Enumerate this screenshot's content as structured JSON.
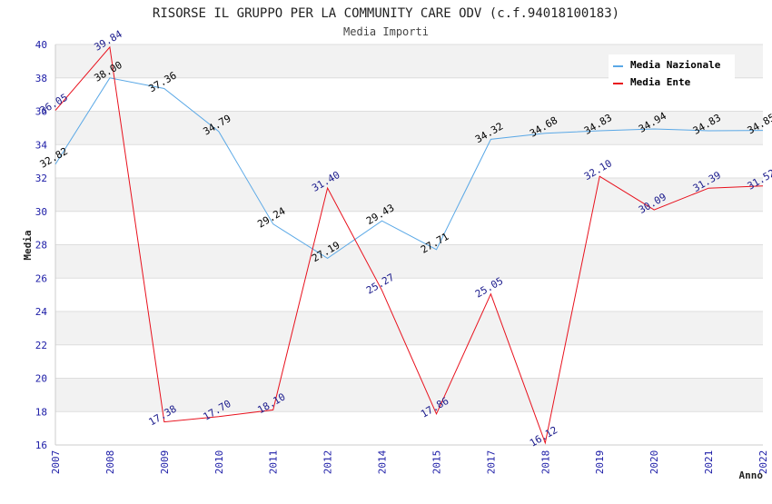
{
  "chart_data": {
    "type": "line",
    "title": "RISORSE IL GRUPPO PER LA COMMUNITY CARE ODV (c.f.94018100183)",
    "subtitle": "Media Importi",
    "xlabel": "Anno",
    "ylabel": "Media",
    "categories": [
      "2007",
      "2008",
      "2009",
      "2010",
      "2011",
      "2012",
      "2014",
      "2015",
      "2017",
      "2018",
      "2019",
      "2020",
      "2021",
      "2022"
    ],
    "ylim": [
      16,
      40
    ],
    "yticks": [
      "16",
      "18",
      "20",
      "22",
      "24",
      "26",
      "28",
      "30",
      "32",
      "34",
      "36",
      "38",
      "40"
    ],
    "grid": "horizontal bands",
    "legend_position": "top-right",
    "series": [
      {
        "name": "Media Nazionale",
        "color": "#5aa8e6",
        "label_color": "#000000",
        "values": [
          32.82,
          38.0,
          37.36,
          34.79,
          29.24,
          27.19,
          29.43,
          27.71,
          34.32,
          34.68,
          34.83,
          34.94,
          34.83,
          34.85
        ],
        "labels": [
          "32.82",
          "38.00",
          "37.36",
          "34.79",
          "29.24",
          "27.19",
          "29.43",
          "27.71",
          "34.32",
          "34.68",
          "34.83",
          "34.94",
          "34.83",
          "34.85"
        ]
      },
      {
        "name": "Media Ente",
        "color": "#e8101c",
        "label_color": "#1a1a8c",
        "values": [
          36.05,
          39.84,
          17.38,
          17.7,
          18.1,
          31.4,
          25.27,
          17.86,
          25.05,
          16.12,
          32.1,
          30.09,
          31.39,
          31.52
        ],
        "labels": [
          "36.05",
          "39.84",
          "17.38",
          "17.70",
          "18.10",
          "31.40",
          "25.27",
          "17.86",
          "25.05",
          "16.12",
          "32.10",
          "30.09",
          "31.39",
          "31.52"
        ]
      }
    ]
  }
}
